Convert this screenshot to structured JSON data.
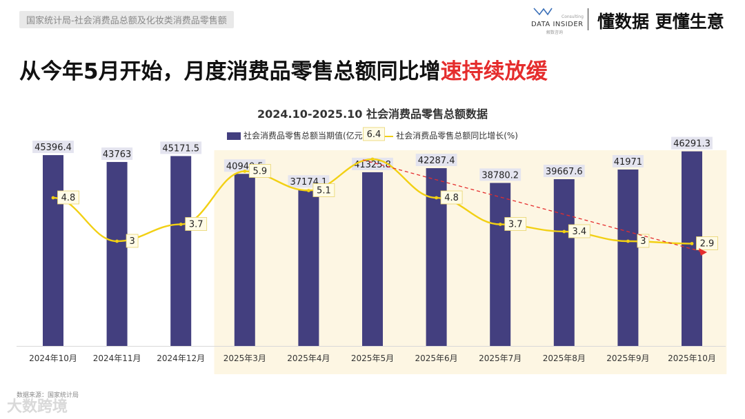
{
  "header": {
    "breadcrumb": "国家统计局-社会消费品总额及化妆类消费品零售额",
    "brand_tag": "Consulting",
    "brand_name": "DATA INSIDER",
    "brand_cn": "解数咨询",
    "slogan": "懂数据 更懂生意"
  },
  "headline": {
    "main": "从今年5月开始，月度消费品零售总额同比增",
    "highlight": "速持续放缓"
  },
  "footer": {
    "source": "数据来源：国家统计局",
    "watermark": "大数跨境"
  },
  "colors": {
    "bar": "#433f7f",
    "line": "#f2d014",
    "highlight_bg": "#fdf6e3",
    "trend_arrow": "#e52d2d",
    "headline_highlight": "#e52d2d",
    "bar_label_bg": "#e4e4ef"
  },
  "chart_data": {
    "type": "bar",
    "title": "2024.10-2025.10 社会消费品零售总额数据",
    "categories": [
      "2024年10月",
      "2024年11月",
      "2024年12月",
      "2025年3月",
      "2025年4月",
      "2025年5月",
      "2025年6月",
      "2025年7月",
      "2025年8月",
      "2025年9月",
      "2025年10月"
    ],
    "series": [
      {
        "name": "社会消费品零售总额当期值(亿元)",
        "type": "bar",
        "axis": "left",
        "values": [
          45396.4,
          43763,
          45171.5,
          40940.5,
          37174.1,
          41325.8,
          42287.4,
          38780.2,
          39667.6,
          41971,
          46291.3
        ],
        "labels": [
          "45396.4",
          "43763",
          "45171.5",
          "40940.5",
          "37174.1",
          "41325.8",
          "42287.4",
          "38780.2",
          "39667.6",
          "41971",
          "46291.3"
        ]
      },
      {
        "name": "社会消费品零售总额同比增长(%)",
        "type": "line",
        "axis": "right",
        "values": [
          4.8,
          3,
          3.7,
          5.9,
          5.1,
          6.4,
          4.8,
          3.7,
          3.4,
          3,
          2.9
        ],
        "labels": [
          "4.8",
          "3",
          "3.7",
          "5.9",
          "5.1",
          "6.4",
          "4.8",
          "3.7",
          "3.4",
          "3",
          "2.9"
        ]
      }
    ],
    "left_axis_range": [
      0,
      50000
    ],
    "right_axis_range": [
      0,
      7
    ],
    "highlighted_range": [
      "2025年3月",
      "2025年10月"
    ],
    "trend_arrow": {
      "from": "2025年5月",
      "to": "2025年10月",
      "direction": "down",
      "style": "dashed"
    },
    "grid": false,
    "legend_position": "top"
  }
}
